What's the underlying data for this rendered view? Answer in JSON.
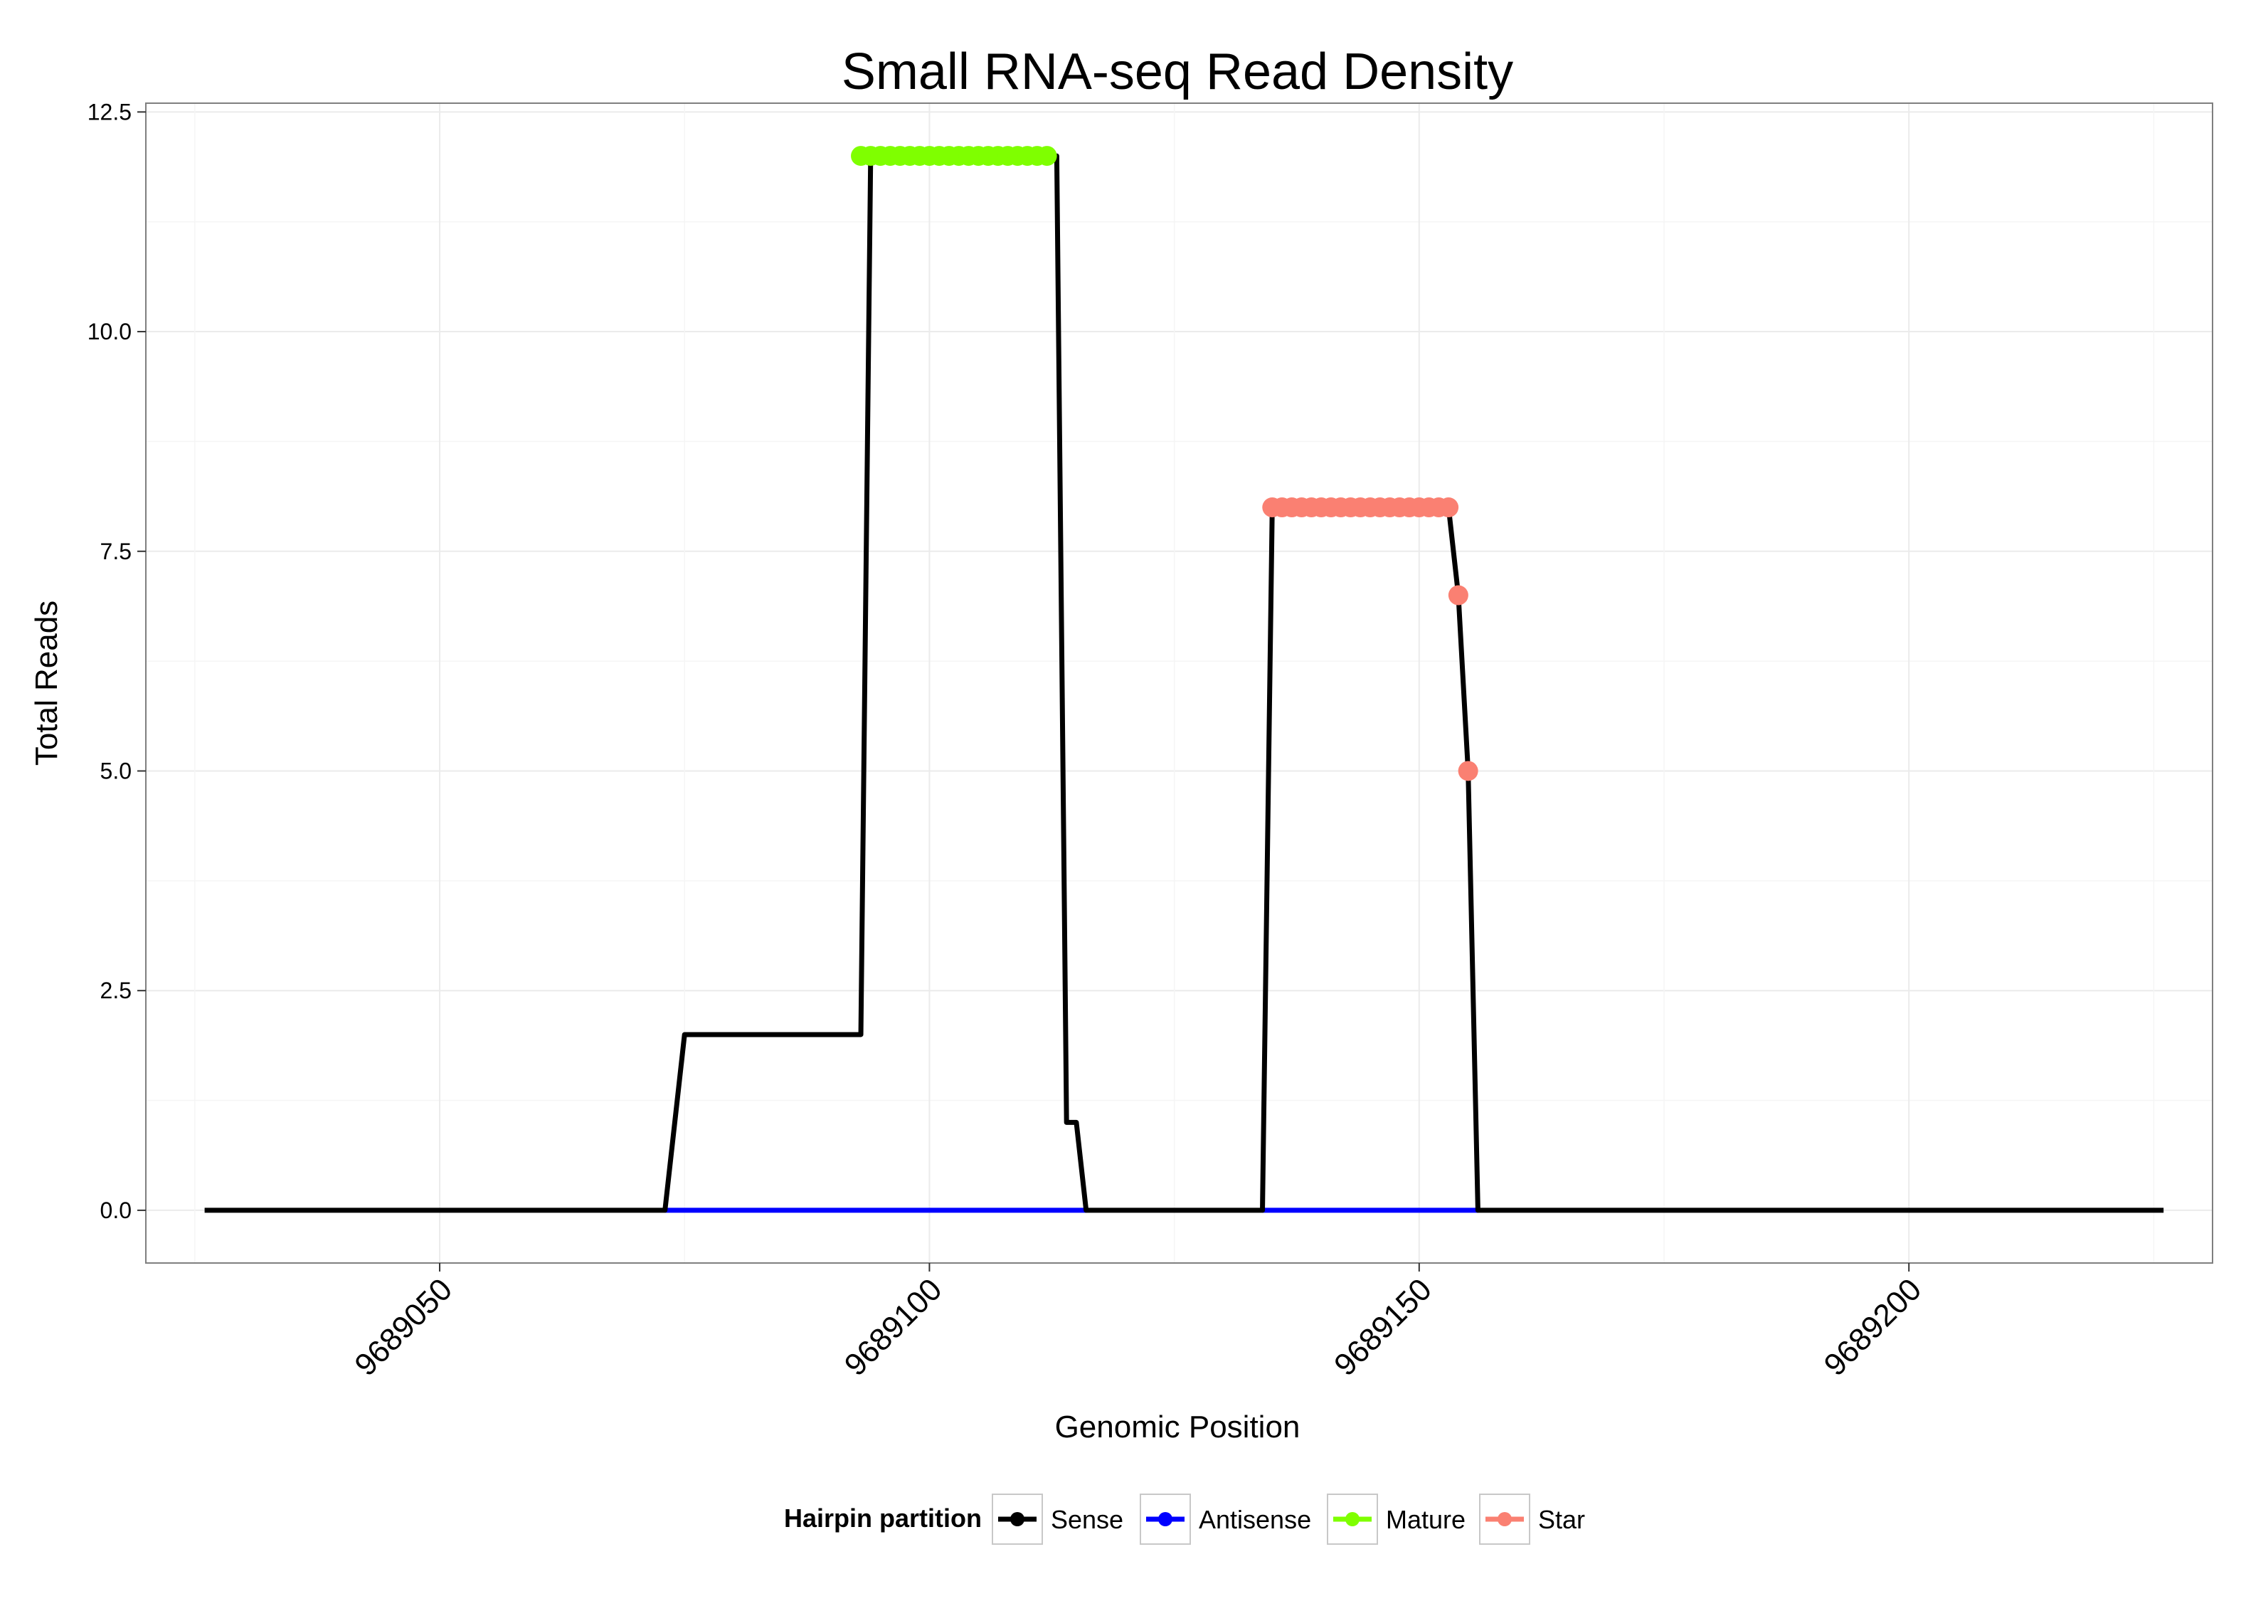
{
  "chart_data": {
    "type": "line",
    "title": "Small RNA-seq Read Density",
    "xlabel": "Genomic Position",
    "ylabel": "Total Reads",
    "xlim": [
      9689020,
      9689231
    ],
    "ylim": [
      -0.6,
      12.6
    ],
    "x_ticks": [
      9689050,
      9689100,
      9689150,
      9689200
    ],
    "y_ticks": [
      0,
      2.5,
      5,
      7.5,
      10,
      12.5
    ],
    "y_tick_labels": [
      "0.0",
      "2.5",
      "5.0",
      "7.5",
      "10.0",
      "12.5"
    ],
    "grid": true,
    "legend": {
      "title": "Hairpin partition",
      "position": "bottom",
      "entries": [
        "Sense",
        "Antisense",
        "Mature",
        "Star"
      ]
    },
    "series": [
      {
        "name": "Sense",
        "color": "#000000",
        "style": "line",
        "x": [
          9689026,
          9689073,
          9689075,
          9689093,
          9689094,
          9689095,
          9689112,
          9689113,
          9689114,
          9689115,
          9689116,
          9689134,
          9689135,
          9689153,
          9689154,
          9689155,
          9689156,
          9689226
        ],
        "y": [
          0,
          0,
          2,
          2,
          12,
          12,
          12,
          12,
          1,
          1,
          0,
          0,
          8,
          8,
          7,
          5,
          0,
          0
        ]
      },
      {
        "name": "Antisense",
        "color": "#0000ff",
        "style": "line",
        "x": [
          9689073,
          9689116,
          9689134,
          9689156
        ],
        "y": [
          0,
          0,
          0,
          0
        ],
        "segments": [
          [
            9689073,
            9689116
          ],
          [
            9689134,
            9689156
          ]
        ]
      },
      {
        "name": "Mature",
        "color": "#7fff00",
        "style": "points",
        "x": [
          9689093,
          9689094,
          9689095,
          9689096,
          9689097,
          9689098,
          9689099,
          9689100,
          9689101,
          9689102,
          9689103,
          9689104,
          9689105,
          9689106,
          9689107,
          9689108,
          9689109,
          9689110,
          9689111,
          9689112
        ],
        "y": [
          12,
          12,
          12,
          12,
          12,
          12,
          12,
          12,
          12,
          12,
          12,
          12,
          12,
          12,
          12,
          12,
          12,
          12,
          12,
          12
        ]
      },
      {
        "name": "Star",
        "color": "#fa8072",
        "style": "points",
        "x": [
          9689135,
          9689136,
          9689137,
          9689138,
          9689139,
          9689140,
          9689141,
          9689142,
          9689143,
          9689144,
          9689145,
          9689146,
          9689147,
          9689148,
          9689149,
          9689150,
          9689151,
          9689152,
          9689153,
          9689154,
          9689155
        ],
        "y": [
          8,
          8,
          8,
          8,
          8,
          8,
          8,
          8,
          8,
          8,
          8,
          8,
          8,
          8,
          8,
          8,
          8,
          8,
          8,
          7,
          5
        ]
      }
    ]
  }
}
